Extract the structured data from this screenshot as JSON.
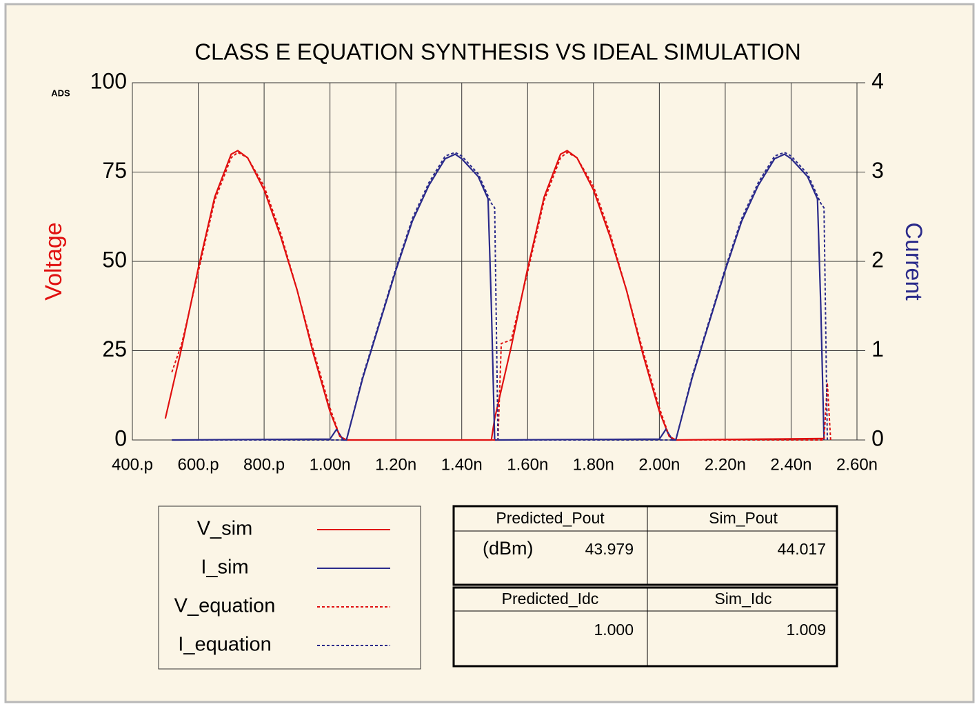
{
  "chart_data": {
    "type": "line",
    "title": "CLASS E EQUATION SYNTHESIS VS IDEAL SIMULATION",
    "watermark": "ADS",
    "ylabel": "Voltage",
    "y2label": "Current",
    "grid": true,
    "xlim": [
      0.4,
      2.6
    ],
    "xticks": [
      {
        "value": 0.4,
        "label": "400.p"
      },
      {
        "value": 0.6,
        "label": "600.p"
      },
      {
        "value": 0.8,
        "label": "800.p"
      },
      {
        "value": 1.0,
        "label": "1.00n"
      },
      {
        "value": 1.2,
        "label": "1.20n"
      },
      {
        "value": 1.4,
        "label": "1.40n"
      },
      {
        "value": 1.6,
        "label": "1.60n"
      },
      {
        "value": 1.8,
        "label": "1.80n"
      },
      {
        "value": 2.0,
        "label": "2.00n"
      },
      {
        "value": 2.2,
        "label": "2.20n"
      },
      {
        "value": 2.4,
        "label": "2.40n"
      },
      {
        "value": 2.6,
        "label": "2.60n"
      }
    ],
    "ylim": [
      0,
      100
    ],
    "yticks": [
      0,
      25,
      50,
      75,
      100
    ],
    "y2lim": [
      0,
      4
    ],
    "y2ticks": [
      0,
      1,
      2,
      3,
      4
    ],
    "series": [
      {
        "name": "V_sim",
        "color": "#e01010",
        "style": "solid",
        "x": [
          0.5,
          0.55,
          0.6,
          0.65,
          0.7,
          0.72,
          0.75,
          0.8,
          0.85,
          0.9,
          0.95,
          1.0,
          1.03,
          1.05,
          1.49,
          1.5,
          1.55,
          1.6,
          1.65,
          1.7,
          1.72,
          1.75,
          1.8,
          1.85,
          1.9,
          1.95,
          2.0,
          2.03,
          2.05,
          2.5
        ],
        "values": [
          6,
          26,
          48,
          68,
          80,
          81,
          79,
          70,
          57,
          42,
          24,
          8,
          1,
          0,
          0,
          6,
          26,
          48,
          68,
          80,
          81,
          79,
          70,
          57,
          42,
          24,
          8,
          1,
          0,
          0.4
        ]
      },
      {
        "name": "I_sim",
        "color": "#2a2a8a",
        "style": "solid",
        "axis": "y2",
        "x": [
          0.52,
          1.0,
          1.02,
          1.04,
          1.05,
          1.1,
          1.15,
          1.2,
          1.25,
          1.3,
          1.35,
          1.38,
          1.4,
          1.45,
          1.48,
          1.49,
          1.5,
          2.0,
          2.02,
          2.04,
          2.05,
          2.1,
          2.15,
          2.2,
          2.25,
          2.3,
          2.35,
          2.38,
          2.4,
          2.45,
          2.48,
          2.49,
          2.5
        ],
        "values": [
          0,
          0.01,
          0.12,
          0,
          0,
          0.7,
          1.3,
          1.9,
          2.45,
          2.85,
          3.15,
          3.2,
          3.15,
          2.95,
          2.7,
          1.5,
          0,
          0.01,
          0.12,
          0,
          0,
          0.7,
          1.3,
          1.9,
          2.45,
          2.85,
          3.15,
          3.2,
          3.15,
          2.95,
          2.7,
          1.5,
          0
        ]
      },
      {
        "name": "V_equation",
        "color": "#e01010",
        "style": "dashed",
        "x": [
          0.52,
          0.55,
          0.6,
          0.65,
          0.7,
          0.72,
          0.75,
          0.8,
          0.85,
          0.9,
          0.95,
          1.0,
          1.03,
          1.05,
          1.51,
          1.52,
          1.55,
          1.6,
          1.65,
          1.7,
          1.72,
          1.75,
          1.8,
          1.85,
          1.9,
          1.95,
          2.0,
          2.03,
          2.05,
          2.5,
          2.51,
          2.52
        ],
        "values": [
          19,
          27,
          47,
          67,
          79,
          80.5,
          79,
          71,
          58,
          42,
          25,
          9,
          1,
          0,
          0,
          27,
          28,
          47,
          67,
          79,
          80.5,
          79,
          71,
          58,
          42,
          25,
          9,
          1,
          0,
          0,
          16,
          0
        ]
      },
      {
        "name": "I_equation",
        "color": "#2a2a8a",
        "style": "dashed",
        "axis": "y2",
        "x": [
          0.52,
          1.0,
          1.05,
          1.1,
          1.15,
          1.2,
          1.25,
          1.3,
          1.35,
          1.38,
          1.4,
          1.45,
          1.49,
          1.5,
          1.51,
          2.0,
          2.05,
          2.1,
          2.15,
          2.2,
          2.25,
          2.3,
          2.35,
          2.38,
          2.4,
          2.45,
          2.49,
          2.5,
          2.51
        ],
        "values": [
          0,
          0,
          0,
          0.72,
          1.32,
          1.92,
          2.48,
          2.88,
          3.18,
          3.22,
          3.18,
          2.98,
          2.65,
          2.6,
          0,
          0,
          0,
          0.72,
          1.32,
          1.92,
          2.48,
          2.88,
          3.18,
          3.22,
          3.18,
          2.98,
          2.65,
          2.6,
          0
        ]
      }
    ]
  },
  "table": {
    "unit": "(dBm)",
    "rows": [
      [
        "Predicted_Pout",
        "Sim_Pout"
      ],
      [
        "43.979",
        "44.017"
      ],
      [
        "Predicted_Idc",
        "Sim_Idc"
      ],
      [
        "1.000",
        "1.009"
      ]
    ]
  }
}
